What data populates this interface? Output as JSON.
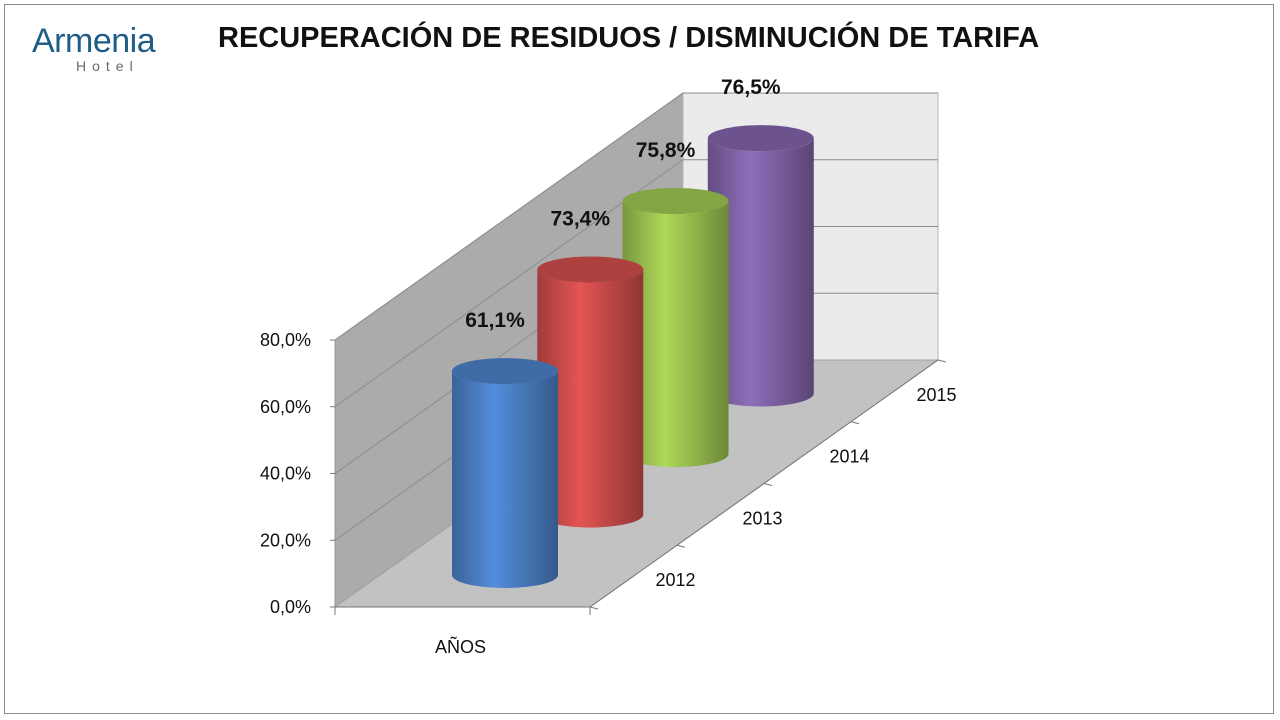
{
  "logo": {
    "name": "Armenia",
    "subtitle": "Hotel"
  },
  "chart_data": {
    "type": "bar",
    "subtype": "3d-cylinder",
    "title": "RECUPERACIÓN DE RESIDUOS / DISMINUCIÓN DE TARIFA",
    "xlabel": "AÑOS",
    "ylabel": "",
    "categories": [
      "2012",
      "2013",
      "2014",
      "2015"
    ],
    "values": [
      61.1,
      73.4,
      75.8,
      76.5
    ],
    "data_labels": [
      "61,1%",
      "73,4%",
      "75,8%",
      "76,5%"
    ],
    "colors": [
      "#4a7fc4",
      "#cc4c4a",
      "#9bc24f",
      "#8062a6"
    ],
    "ylim": [
      0,
      80
    ],
    "yticks": [
      "0,0%",
      "20,0%",
      "40,0%",
      "60,0%",
      "80,0%"
    ],
    "grid": true,
    "legend": "none"
  }
}
